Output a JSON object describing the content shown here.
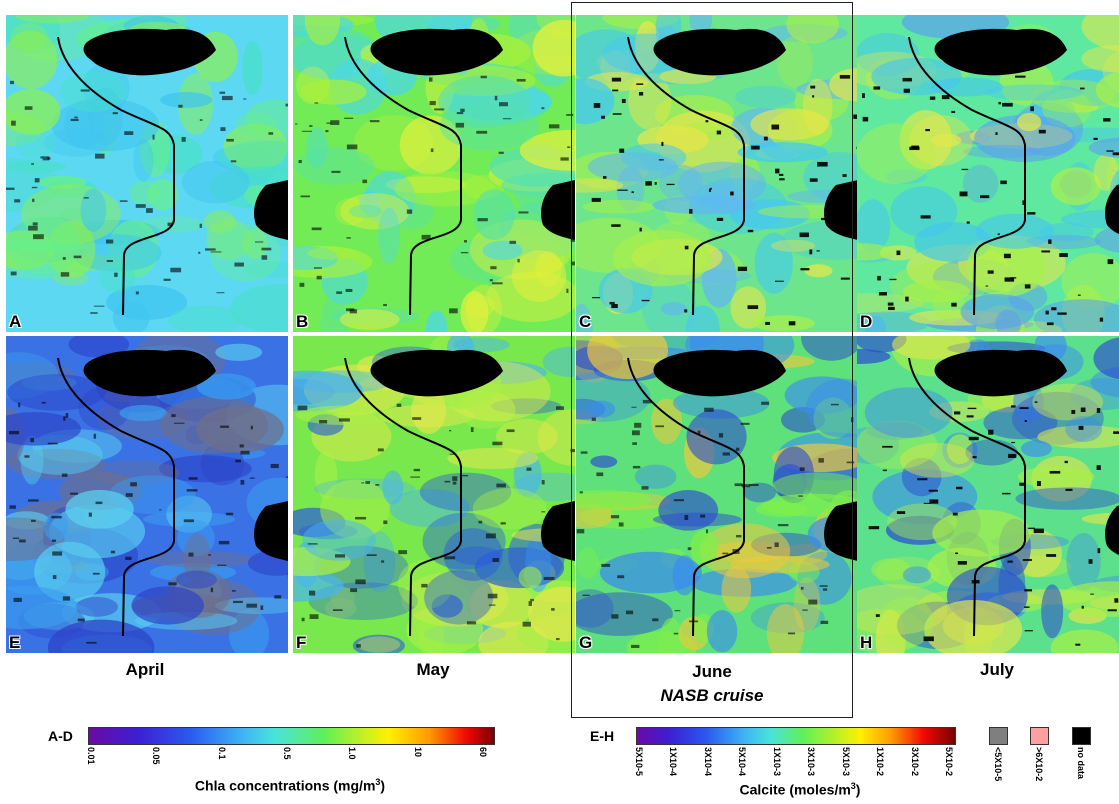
{
  "panels": [
    {
      "letter": "A"
    },
    {
      "letter": "B"
    },
    {
      "letter": "C"
    },
    {
      "letter": "D"
    },
    {
      "letter": "E"
    },
    {
      "letter": "F"
    },
    {
      "letter": "G"
    },
    {
      "letter": "H"
    }
  ],
  "months": [
    "April",
    "May",
    "June",
    "July"
  ],
  "cruise_label": "NASB cruise",
  "colorbar_chla": {
    "tag": "A-D",
    "ticks": [
      "0.01",
      "0.05",
      "0.1",
      "0.5",
      "1.0",
      "10",
      "60"
    ],
    "title": "Chla concentrations (mg/m",
    "title_sup": "3",
    "title_end": ")"
  },
  "colorbar_calcite": {
    "tag": "E-H",
    "ticks": [
      "5X10-5",
      "1X10-4",
      "3X10-4",
      "5X10-4",
      "1X10-3",
      "3X10-3",
      "5X10-3",
      "1X10-2",
      "3X10-2",
      "5X10-2"
    ],
    "title": "Calcite (moles/m",
    "title_sup": "3",
    "title_end": ")"
  },
  "legend_extras": [
    {
      "label": "<5X10-5",
      "color": "#7f7f7f"
    },
    {
      "label": ">6X10-2",
      "color": "#ff9fa0"
    },
    {
      "label": "no data",
      "color": "#000000"
    }
  ]
}
